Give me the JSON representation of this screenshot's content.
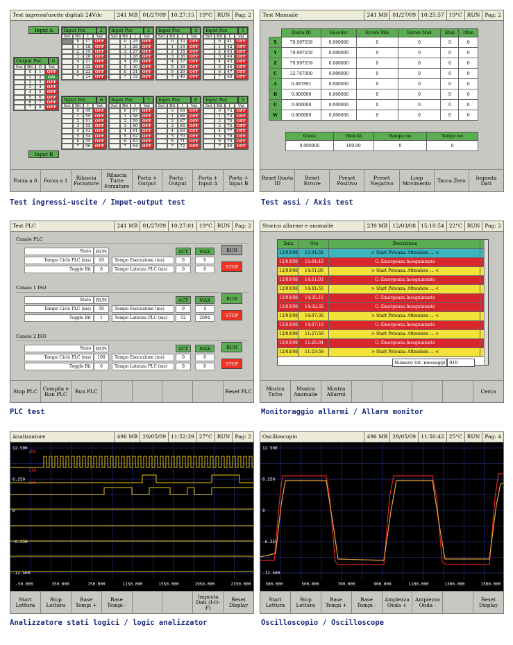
{
  "io": {
    "title": "Test ingressi/uscite digitali 24Vdc",
    "mem": "241 MB",
    "date": "01/27/09",
    "time": "10:27:15",
    "temp": "19°C",
    "state": "RUN",
    "page": "Pag: 2",
    "input_a": "Input A",
    "input_b": "Input B",
    "output_por": "Output Por.",
    "output_num": "0",
    "input_groups": [
      {
        "n": "2",
        "rows": [
          "17",
          "18",
          "19",
          "20",
          "21",
          "22",
          "23",
          "24"
        ]
      },
      {
        "n": "3",
        "rows": [
          "25",
          "26",
          "27",
          "28",
          "29",
          "30",
          "31",
          "32"
        ]
      },
      {
        "n": "4",
        "rows": [
          "33",
          "34",
          "35",
          "36",
          "37",
          "38",
          "39",
          "40"
        ]
      },
      {
        "n": "5",
        "rows": [
          "41",
          "42",
          "43",
          "44",
          "45",
          "46",
          "47",
          "48"
        ]
      },
      {
        "n": "6",
        "rows": [
          "49",
          "50",
          "51",
          "52",
          "53",
          "54",
          "55",
          "56"
        ]
      },
      {
        "n": "7",
        "rows": [
          "57",
          "58",
          "59",
          "60",
          "61",
          "62",
          "63",
          "64"
        ]
      },
      {
        "n": "8",
        "rows": [
          "65",
          "66",
          "67",
          "68",
          "69",
          "70",
          "71",
          "72"
        ]
      },
      {
        "n": "9",
        "rows": [
          "73",
          "74",
          "75",
          "76",
          "77",
          "78",
          "79",
          "80"
        ]
      }
    ],
    "input_por": "Input Por.",
    "h_set": "Set",
    "h_bit": "Bit",
    "h_i": "I",
    "h_val": "Val",
    "h_o": "O",
    "off": "OFF",
    "on": "ON",
    "outputs": [
      {
        "bit": "0",
        "o": "1",
        "v": "OFF"
      },
      {
        "bit": "1",
        "o": "2",
        "v": "ON"
      },
      {
        "bit": "2",
        "o": "3",
        "v": "OFF"
      },
      {
        "bit": "3",
        "o": "4",
        "v": "OFF"
      },
      {
        "bit": "4",
        "o": "5",
        "v": "OFF"
      },
      {
        "bit": "5",
        "o": "6",
        "v": "OFF"
      },
      {
        "bit": "6",
        "o": "7",
        "v": "OFF"
      },
      {
        "bit": "7",
        "o": "8",
        "v": "OFF"
      }
    ],
    "buttons": [
      "Forza a 0",
      "Forza a 1",
      "Rilascia Forzature",
      "Rilascia Tutte Forzature",
      "Porta + Output",
      "Porta - Output",
      "Porta + Input A",
      "Porta + Input B"
    ],
    "caption": "Test ingressi-uscite / Imput-output test"
  },
  "axis": {
    "title": "Test Manuale",
    "mem": "241 MB",
    "date": "01/27/09",
    "time": "10:25:57",
    "temp": "19°C",
    "state": "RUN",
    "page": "Pag: 2",
    "headers": [
      "Quota ID",
      "Encoder",
      "Errore Min",
      "Errore Max",
      "iRun",
      "rRun"
    ],
    "rows": [
      {
        "ax": "X",
        "q": "79.997559",
        "e": "0.000000",
        "mn": "0",
        "mx": "0",
        "a": "0",
        "b": "0"
      },
      {
        "ax": "Y",
        "q": "79.997559",
        "e": "0.000000",
        "mn": "0",
        "mx": "0",
        "a": "0",
        "b": "0"
      },
      {
        "ax": "Z",
        "q": "79.997559",
        "e": "0.000000",
        "mn": "0",
        "mx": "0",
        "a": "0",
        "b": "0"
      },
      {
        "ax": "C",
        "q": "32.767000",
        "e": "0.000000",
        "mn": "0",
        "mx": "0",
        "a": "0",
        "b": "0"
      },
      {
        "ax": "A",
        "q": "0.087891",
        "e": "0.000000",
        "mn": "0",
        "mx": "0",
        "a": "0",
        "b": "0"
      },
      {
        "ax": "B",
        "q": "0.000000",
        "e": "0.000000",
        "mn": "0",
        "mx": "0",
        "a": "0",
        "b": "0"
      },
      {
        "ax": "U",
        "q": "0.000000",
        "e": "0.000000",
        "mn": "0",
        "mx": "0",
        "a": "0",
        "b": "0"
      },
      {
        "ax": "W",
        "q": "0.000000",
        "e": "0.000000",
        "mn": "0",
        "mx": "0",
        "a": "0",
        "b": "0"
      }
    ],
    "h2": [
      "Quota",
      "Velocità",
      "Rampa ms",
      "Tempo ms"
    ],
    "v2": [
      "0.000000",
      "100.00",
      "0",
      "0"
    ],
    "buttons": [
      "Reset Quota ID",
      "Reset Errore",
      "Preset Positivo",
      "Preset Negativo",
      "Loop Movimento",
      "Tacca Zero",
      "Imposta Dati"
    ],
    "caption": "Test assi / Axis test"
  },
  "plc": {
    "title": "Test PLC",
    "mem": "241 MB",
    "date": "01/27/09",
    "time": "10:27:01",
    "temp": "19°C",
    "state": "RUN",
    "page": "Pag: 2",
    "sections": [
      {
        "name": "Canale PLC",
        "stato": "RUN",
        "ciclo": "10",
        "toggle": "0",
        "exec": "0",
        "exec_max": "0",
        "lat": "0",
        "lat_max": "0",
        "run_grey": true
      },
      {
        "name": "Canale 1 ISO",
        "stato": "RUN",
        "ciclo": "50",
        "toggle": "1",
        "exec": "0",
        "exec_max": "4",
        "lat": "52",
        "lat_max": "2084",
        "run_grey": false
      },
      {
        "name": "Canale 2 ISO",
        "stato": "RUN",
        "ciclo": "100",
        "toggle": "0",
        "exec": "0",
        "exec_max": "0",
        "lat": "0",
        "lat_max": "0",
        "run_grey": false
      }
    ],
    "l_stato": "Stato",
    "l_ciclo": "Tempo Ciclo PLC (ms)",
    "l_toggle": "Toggle Bit",
    "l_exec": "Tempo Esecuzione (ms)",
    "l_lat": "Tempo Latenza PLC (ms)",
    "l_act": "ACT",
    "l_max": "MAX",
    "run": "RUN",
    "stop": "STOP",
    "buttons": [
      "Stop PLC",
      "Compila e Run PLC",
      "Run PLC",
      "",
      "",
      "",
      "",
      "Reset PLC"
    ],
    "caption": "PLC test"
  },
  "alarm": {
    "title": "Storico allarme e anomalie",
    "mem": "239 MB",
    "date": "12/03/08",
    "time": "15:10:54",
    "temp": "22°C",
    "state": "RUN",
    "page": "Pag: 2",
    "headers": [
      "Data",
      "Ora",
      "Descrizione"
    ],
    "rows": [
      {
        "d": "12/03/08",
        "t": "15:04:58",
        "x": "> Start Potenza: Attendere ... <",
        "c": "#3bb6bf"
      },
      {
        "d": "12/03/08",
        "t": "15:04:43",
        "x": "C: Emergenza Inseguimento",
        "c": "#d8272c"
      },
      {
        "d": "12/03/08",
        "t": "14:51:05",
        "x": "> Start Potenza: Attendere ... <",
        "c": "#f2e23a"
      },
      {
        "d": "12/03/08",
        "t": "14:51:03",
        "x": "C: Emergenza Inseguimento",
        "c": "#d8272c"
      },
      {
        "d": "12/03/08",
        "t": "14:41:55",
        "x": "> Start Potenza: Attendere ... <",
        "c": "#f2e23a"
      },
      {
        "d": "12/03/08",
        "t": "14:35:15",
        "x": "C: Emergenza Inseguimento",
        "c": "#d8272c"
      },
      {
        "d": "12/03/08",
        "t": "14:32:32",
        "x": "C: Emergenza Inseguimento",
        "c": "#d8272c"
      },
      {
        "d": "12/03/08",
        "t": "14:07:30",
        "x": "> Start Potenza: Attendere ... <",
        "c": "#f2e23a"
      },
      {
        "d": "12/03/08",
        "t": "14:07:10",
        "x": "C: Emergenza Inseguimento",
        "c": "#d8272c"
      },
      {
        "d": "12/03/08",
        "t": "11:27:50",
        "x": "> Start Potenza: Attendere ... <",
        "c": "#f2e23a"
      },
      {
        "d": "12/03/08",
        "t": "11:26:04",
        "x": "C: Emergenza Inseguimento",
        "c": "#d8272c"
      },
      {
        "d": "12/03/08",
        "t": "11:23:59",
        "x": "> Start Potenza: Attendere ... <",
        "c": "#f2e23a"
      }
    ],
    "total_label": "Numero tot. messaggi",
    "total": "910",
    "buttons": [
      "Mostra Tutto",
      "Mostra Anomalie",
      "Mostra Allarmi",
      "",
      "",
      "",
      "",
      "Cerca"
    ],
    "caption": "Monitoraggio allarmi / Allarm monitor"
  },
  "logic": {
    "title": "Analizzatore",
    "mem": "496 MB",
    "date": "29/05/09",
    "time": "11:52:39",
    "temp": "27°C",
    "state": "RUN",
    "page": "Pag: 2",
    "ylabels": [
      "12.500",
      "6.250",
      "0",
      "-6.250",
      "-12.500"
    ],
    "xlabels": [
      "-50.000",
      "350.000",
      "750.000",
      "1150.000",
      "1550.000",
      "1950.000",
      "2350.000"
    ],
    "ch": [
      "100",
      "118",
      "123"
    ],
    "buttons": [
      "Start Lettura",
      "Stop Lettura",
      "Base Tempi +",
      "Base Tempi -",
      "",
      "",
      "Imposta Dati (I-O-F)",
      "Reset Display"
    ],
    "caption": "Analizzatore stati logici / logic analizzator"
  },
  "osc": {
    "title": "Oscilloscopio",
    "mem": "496 MB",
    "date": "29/05/09",
    "time": "11:50:42",
    "temp": "25°C",
    "state": "RUN",
    "page": "Pag: 4",
    "ylabels": [
      "12.500",
      "6.250",
      "0",
      "-6.250",
      "-12.500"
    ],
    "xlabels": [
      "300.000",
      "500.000",
      "700.000",
      "900.000",
      "1100.000",
      "1300.000",
      "1500.000"
    ],
    "buttons": [
      "Start Lettura",
      "Stop Lettura",
      "Base Tempi +",
      "Base Tempi -",
      "Ampiezza Onda +",
      "Ampiezza Onda -",
      "",
      "Reset Display"
    ],
    "caption": "Oscilloscopio / Oscilloscope"
  }
}
